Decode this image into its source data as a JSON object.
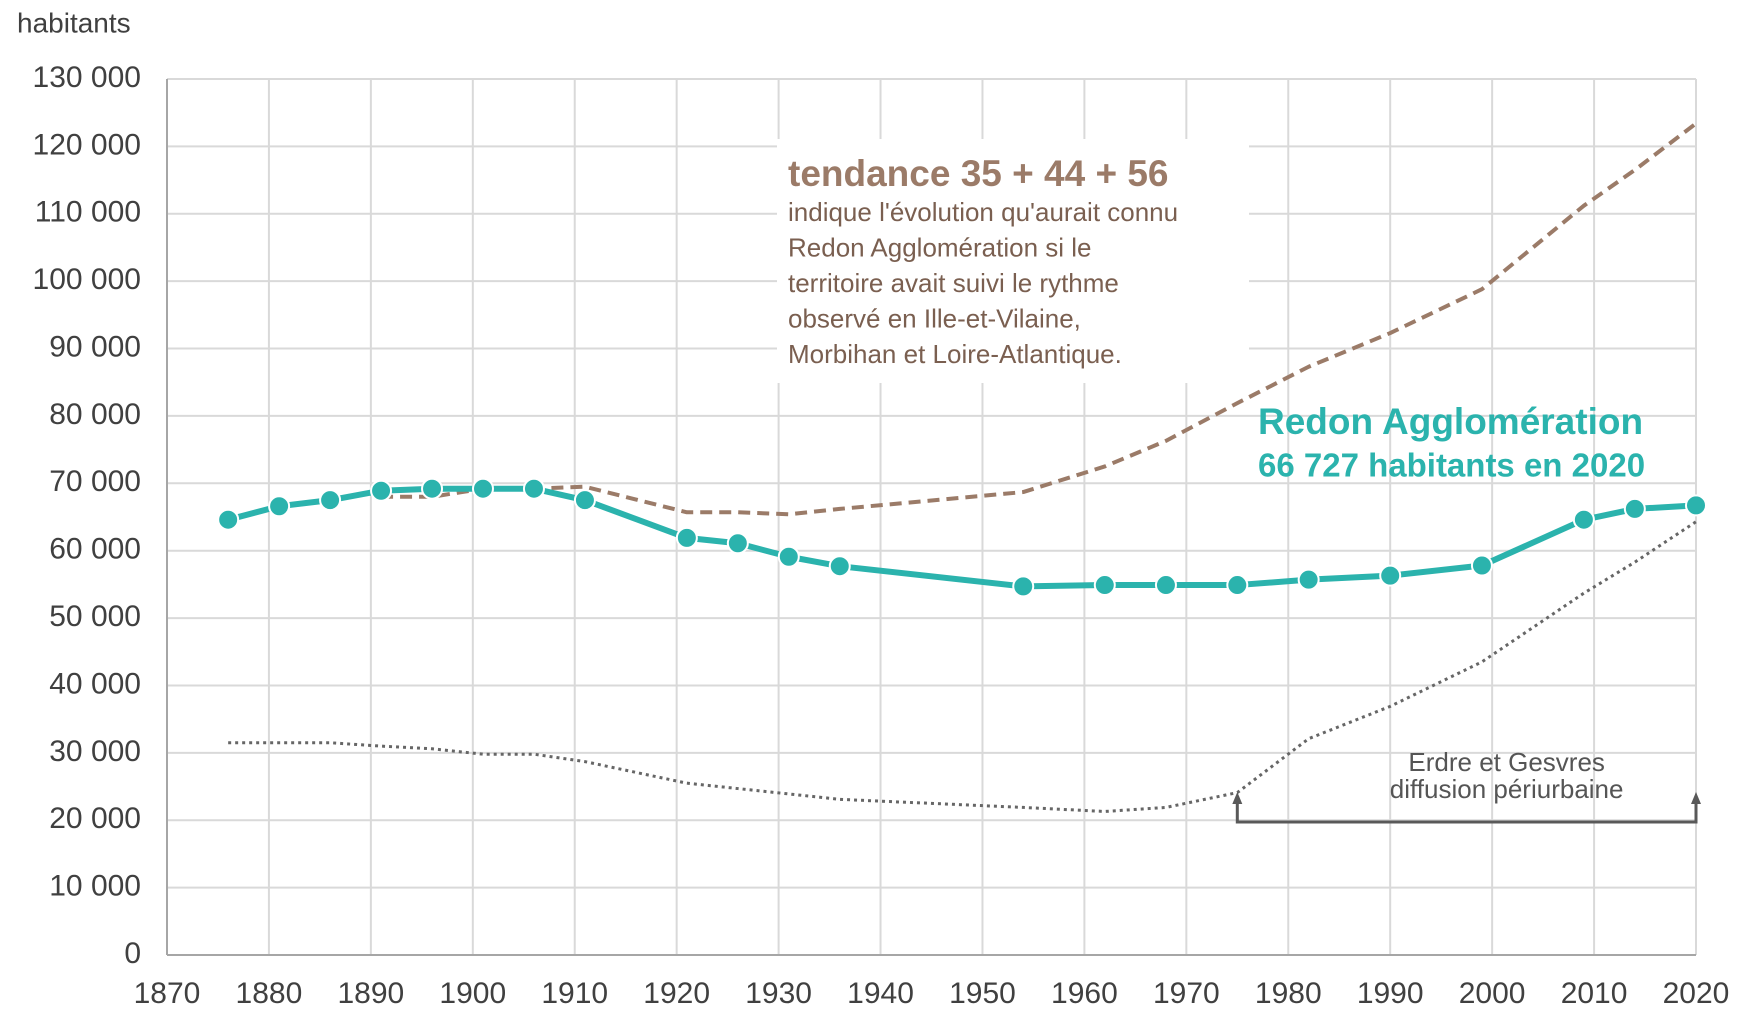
{
  "chart_data": {
    "type": "line",
    "y_label": "habitants",
    "xlim": [
      1870,
      2020
    ],
    "xticks": [
      1870,
      1880,
      1890,
      1900,
      1910,
      1920,
      1930,
      1940,
      1950,
      1960,
      1970,
      1980,
      1990,
      2000,
      2010,
      2020
    ],
    "ylim": [
      0,
      130000
    ],
    "yticks": [
      0,
      {
        "value": 10000,
        "label": "10 000"
      },
      {
        "value": 20000,
        "label": "20 000"
      },
      {
        "value": 30000,
        "label": "30 000"
      },
      {
        "value": 40000,
        "label": "40 000"
      },
      {
        "value": 50000,
        "label": "50 000"
      },
      {
        "value": 60000,
        "label": "60 000"
      },
      {
        "value": 70000,
        "label": "70 000"
      },
      {
        "value": 80000,
        "label": "80 000"
      },
      {
        "value": 90000,
        "label": "90 000"
      },
      {
        "value": 100000,
        "label": "100 000"
      },
      {
        "value": 110000,
        "label": "110 000"
      },
      {
        "value": 120000,
        "label": "120 000"
      },
      {
        "value": 130000,
        "label": "130 000"
      }
    ],
    "grid": true,
    "series": [
      {
        "name": "Redon Agglomération",
        "color": "#2bb3ad",
        "style": "solid",
        "markers": true,
        "x": [
          1876,
          1881,
          1886,
          1891,
          1896,
          1901,
          1906,
          1911,
          1921,
          1926,
          1931,
          1936,
          1954,
          1962,
          1968,
          1975,
          1982,
          1990,
          1999,
          2009,
          2014,
          2020
        ],
        "values": [
          64600,
          66600,
          67500,
          68900,
          69200,
          69200,
          69200,
          67500,
          61900,
          61100,
          59100,
          57700,
          54700,
          54900,
          54900,
          54900,
          55700,
          56300,
          57800,
          64600,
          66200,
          66727
        ]
      },
      {
        "name": "tendance 35 + 44 + 56",
        "color": "#9b7b68",
        "style": "dashed",
        "markers": false,
        "x": [
          1891,
          1896,
          1901,
          1906,
          1911,
          1921,
          1926,
          1931,
          1936,
          1954,
          1962,
          1968,
          1975,
          1982,
          1990,
          1999,
          2009,
          2014,
          2020
        ],
        "values": [
          68000,
          68000,
          69200,
          69200,
          69500,
          65700,
          65700,
          65400,
          66200,
          68700,
          72500,
          76300,
          81900,
          87300,
          92300,
          98800,
          111200,
          116500,
          123400
        ]
      },
      {
        "name": "Erdre et Gesvres",
        "color": "#666666",
        "style": "dotted",
        "markers": false,
        "x": [
          1876,
          1881,
          1886,
          1891,
          1896,
          1901,
          1906,
          1911,
          1921,
          1926,
          1931,
          1936,
          1954,
          1962,
          1968,
          1975,
          1982,
          1990,
          1999,
          2009,
          2014,
          2020
        ],
        "values": [
          31500,
          31500,
          31500,
          31000,
          30600,
          29800,
          29800,
          28700,
          25500,
          24700,
          23900,
          23100,
          21900,
          21300,
          21900,
          24100,
          32100,
          36900,
          43500,
          53700,
          58300,
          64300
        ]
      }
    ],
    "annotations": {
      "tendance_note": [
        "indique l'évolution qu'aurait connu",
        "Redon Agglomération si le",
        "territoire avait suivi le rythme",
        "observé en Ille-et-Vilaine,",
        "Morbihan et Loire-Atlantique."
      ],
      "redon_note": "66 727 habitants en 2020",
      "erdre_note": "diffusion périurbaine"
    }
  }
}
